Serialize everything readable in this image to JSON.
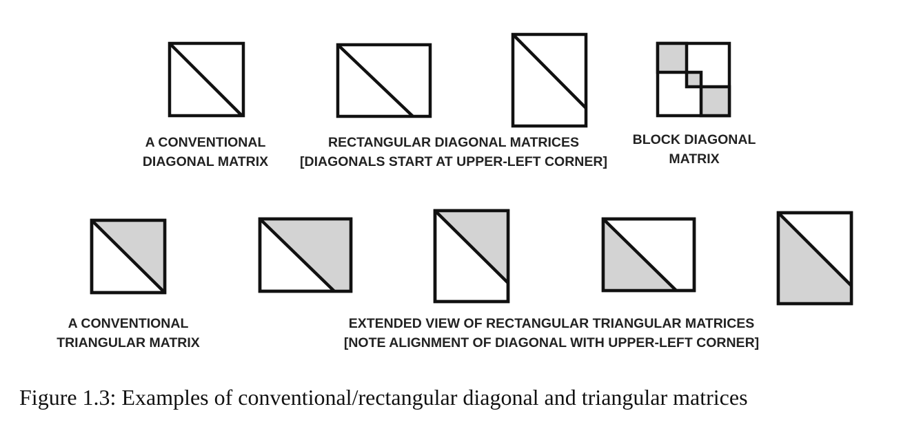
{
  "colors": {
    "stroke": "#111111",
    "fill_shaded": "#d3d3d3",
    "fill_empty": "#ffffff"
  },
  "labels": {
    "conventional_diagonal": [
      "A CONVENTIONAL",
      "DIAGONAL MATRIX"
    ],
    "rectangular_diagonal": [
      "RECTANGULAR DIAGONAL MATRICES",
      "[DIAGONALS START AT UPPER-LEFT CORNER]"
    ],
    "block_diagonal": [
      "BLOCK DIAGONAL",
      "MATRIX"
    ],
    "conventional_triangular": [
      "A CONVENTIONAL",
      "TRIANGULAR MATRIX"
    ],
    "rectangular_triangular": [
      "EXTENDED VIEW OF RECTANGULAR TRIANGULAR MATRICES",
      "[NOTE ALIGNMENT OF DIAGONAL  WITH UPPER-LEFT CORNER]"
    ]
  },
  "caption": "Figure 1.3: Examples of conventional/rectangular diagonal and triangular matrices"
}
